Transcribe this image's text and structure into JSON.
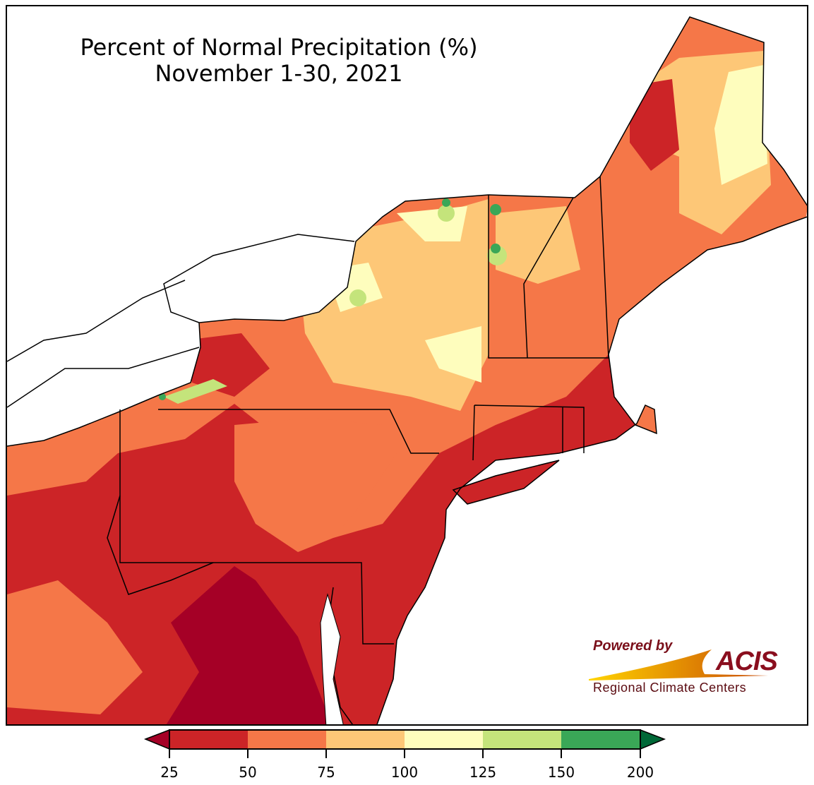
{
  "title": {
    "line1": "Percent of Normal Precipitation (%)",
    "line2": "November 1-30, 2021"
  },
  "logo": {
    "powered": "Powered by",
    "brand": "ACIS",
    "org": "Regional Climate Centers"
  },
  "legend": {
    "ticks": [
      "25",
      "50",
      "75",
      "100",
      "125",
      "150",
      "200"
    ],
    "colors": {
      "below": "#a50026",
      "c25_50": "#cc2427",
      "c50_75": "#f57748",
      "c75_100": "#fdc777",
      "c100_125": "#fefdbd",
      "c125_150": "#c4e47b",
      "c150_200": "#3aa757",
      "above": "#006837"
    }
  }
}
